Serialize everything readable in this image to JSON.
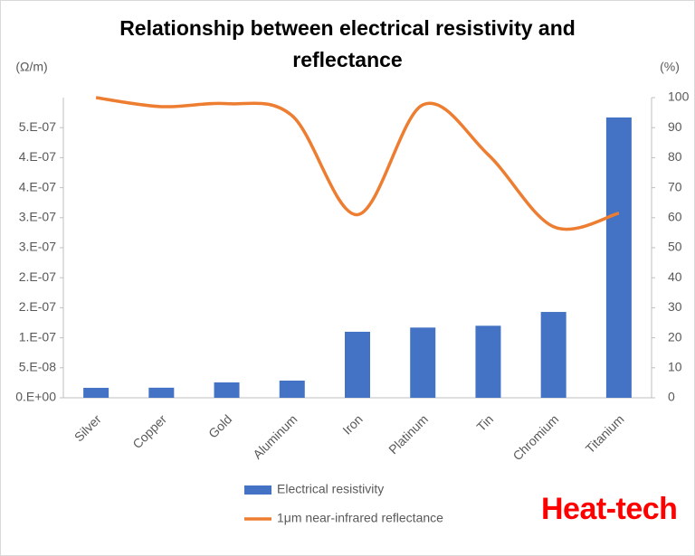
{
  "chart_data": {
    "type": "bar-line",
    "title": "Relationship between electrical resistivity and reflectance",
    "y_label": "(Ω/m)",
    "y2_label": "(%)",
    "watermark": "Heat-tech",
    "categories": [
      "Silver",
      "Copper",
      "Gold",
      "Aluminum",
      "Iron",
      "Platinum",
      "Tin",
      "Chromium",
      "Titanium"
    ],
    "series": [
      {
        "name": "Electrical resistivity",
        "type": "bar",
        "color": "#4472c4",
        "values": [
          1.66e-08,
          1.68e-08,
          2.56e-08,
          2.86e-08,
          1.1e-07,
          1.17e-07,
          1.2e-07,
          1.43e-07,
          4.67e-07
        ]
      },
      {
        "name": "1μm near-infrared reflectance",
        "type": "line",
        "axis": "y2",
        "color": "#ed7d31",
        "values": [
          100,
          97,
          98,
          94,
          61,
          97.6,
          81,
          57,
          61.5
        ]
      }
    ],
    "ylim": [
      0,
      5e-07
    ],
    "yticks": [
      {
        "value": 0,
        "label": "0.E+00"
      },
      {
        "value": 5e-08,
        "label": "5.E-08"
      },
      {
        "value": 1e-07,
        "label": "1.E-07"
      },
      {
        "value": 1.5e-07,
        "label": "2.E-07"
      },
      {
        "value": 2e-07,
        "label": "2.E-07"
      },
      {
        "value": 2.5e-07,
        "label": "3.E-07"
      },
      {
        "value": 3e-07,
        "label": "3.E-07"
      },
      {
        "value": 3.5e-07,
        "label": "4.E-07"
      },
      {
        "value": 4e-07,
        "label": "4.E-07"
      },
      {
        "value": 4.5e-07,
        "label": "5.E-07"
      }
    ],
    "y2lim": [
      0,
      100
    ],
    "y2ticks": [
      0,
      10,
      20,
      30,
      40,
      50,
      60,
      70,
      80,
      90,
      100
    ],
    "legend": "bottom"
  }
}
